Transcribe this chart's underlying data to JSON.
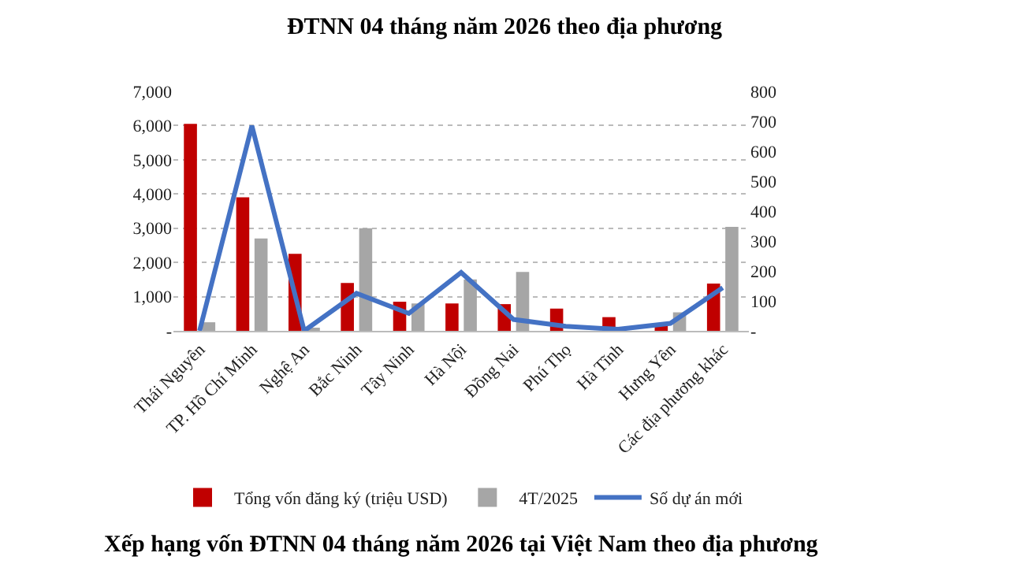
{
  "chart_data": {
    "type": "bar",
    "title": "ĐTNN 04 tháng năm 2026 theo địa phương",
    "annotations": [
      "Xếp hạng vốn ĐTNN 04 tháng năm 2026 tại Việt Nam theo địa phương"
    ],
    "categories": [
      "Thái Nguyên",
      "TP. Hồ Chí Minh",
      "Nghệ An",
      "Bắc Ninh",
      "Tây Ninh",
      "Hà Nội",
      "Đồng Nai",
      "Phú Thọ",
      "Hà Tĩnh",
      "Hưng Yên",
      "Các địa phương khác"
    ],
    "series": [
      {
        "name": "Tổng vốn đăng ký (triệu USD)",
        "color": "#c00000",
        "values": [
          6050,
          3900,
          2250,
          1400,
          850,
          800,
          780,
          650,
          400,
          150,
          1380
        ]
      },
      {
        "name": "4T/2025",
        "color": "#a6a6a6",
        "values": [
          250,
          2700,
          50,
          3000,
          800,
          1500,
          1720,
          null,
          0,
          540,
          3040
        ]
      },
      {
        "name": "Số dự án mới",
        "type": "line",
        "axis": "y2",
        "color": "#4472c4",
        "values": [
          0,
          685,
          0,
          125,
          58,
          195,
          38,
          15,
          5,
          25,
          144
        ]
      }
    ],
    "ylim": [
      0,
      7000
    ],
    "yticks": [
      {
        "value": 0,
        "label": "-"
      },
      {
        "value": 1000,
        "label": "1,000"
      },
      {
        "value": 2000,
        "label": "2,000"
      },
      {
        "value": 3000,
        "label": "3,000"
      },
      {
        "value": 4000,
        "label": "4,000"
      },
      {
        "value": 5000,
        "label": "5,000"
      },
      {
        "value": 6000,
        "label": "6,000"
      },
      {
        "value": 7000,
        "label": "7,000"
      }
    ],
    "y2lim": [
      0,
      800
    ],
    "y2ticks": [
      {
        "value": 0,
        "label": "-"
      },
      100,
      200,
      300,
      400,
      500,
      600,
      700,
      800
    ],
    "grid": "y",
    "legend": "bottom",
    "marker": "none",
    "line_style": "solid"
  }
}
